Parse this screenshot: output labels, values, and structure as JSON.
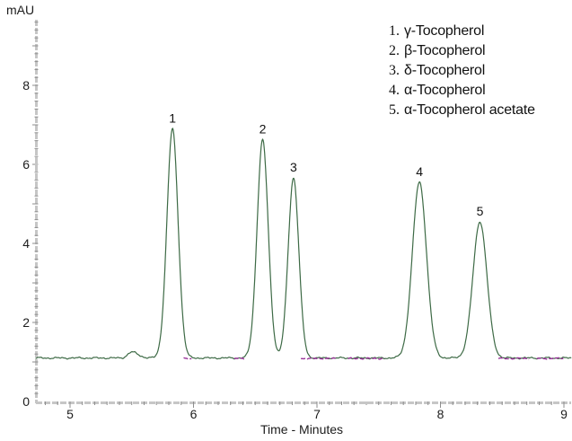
{
  "colors": {
    "trace_primary": "#3d6a45",
    "trace_secondary": "#993399",
    "axis_band": "#c6c6c6",
    "tick": "#8e8e8e",
    "text": "#1c1c1c"
  },
  "legend": [
    {
      "num": "1.",
      "name": "γ-Tocopherol"
    },
    {
      "num": "2.",
      "name": "β-Tocopherol"
    },
    {
      "num": "3.",
      "name": "δ-Tocopherol"
    },
    {
      "num": "4.",
      "name": "α-Tocopherol"
    },
    {
      "num": "5.",
      "name": "α-Tocopherol acetate"
    }
  ],
  "chart_data": {
    "type": "line",
    "title": "",
    "xlabel": "Time - Minutes",
    "ylabel": "mAU",
    "xlim": [
      4.72,
      9.06
    ],
    "ylim": [
      0,
      9.65
    ],
    "xticks": [
      5,
      6,
      7,
      8,
      9
    ],
    "yticks": [
      0,
      2,
      4,
      6,
      8
    ],
    "grid": false,
    "legend_position": "top-right",
    "baseline_mAU": 1.1,
    "baseline_bump": {
      "rt_min": 5.5,
      "apex_mAU": 1.25,
      "sigma_min": 0.04
    },
    "peaks": [
      {
        "label": "1",
        "compound": "γ-Tocopherol",
        "rt_min": 5.83,
        "apex_mAU": 6.9,
        "sigma_min": 0.045
      },
      {
        "label": "2",
        "compound": "β-Tocopherol",
        "rt_min": 6.56,
        "apex_mAU": 6.62,
        "sigma_min": 0.045
      },
      {
        "label": "3",
        "compound": "δ-Tocopherol",
        "rt_min": 6.81,
        "apex_mAU": 5.66,
        "sigma_min": 0.043
      },
      {
        "label": "4",
        "compound": "α-Tocopherol",
        "rt_min": 7.83,
        "apex_mAU": 5.55,
        "sigma_min": 0.057
      },
      {
        "label": "5",
        "compound": "α-Tocopherol acetate",
        "rt_min": 8.32,
        "apex_mAU": 4.55,
        "sigma_min": 0.057
      }
    ],
    "secondary_trace_segments_min": [
      [
        5.92,
        5.99
      ],
      [
        6.33,
        6.41
      ],
      [
        6.87,
        7.15
      ],
      [
        7.25,
        7.55
      ],
      [
        8.47,
        8.72
      ],
      [
        8.78,
        9.0
      ]
    ]
  }
}
